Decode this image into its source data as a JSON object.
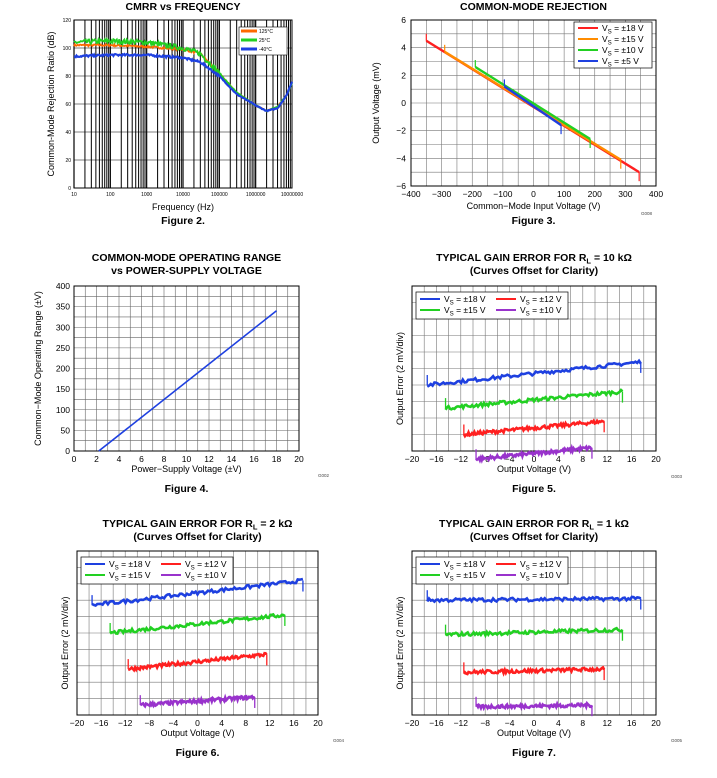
{
  "chart_data": [
    {
      "type": "line",
      "title": "CMRR vs FREQUENCY",
      "xlabel": "Frequency (Hz)",
      "ylabel": "Common-Mode Rejection Ratio (dB)",
      "figure_label": "Figure 2.",
      "x_scale": "log",
      "xlim": [
        10,
        10000000
      ],
      "ylim": [
        0,
        120
      ],
      "x_ticks": [
        "10",
        "100",
        "1000",
        "10000",
        "100000",
        "1000000",
        "10000000"
      ],
      "y_ticks": [
        "0",
        "20",
        "40",
        "60",
        "80",
        "100",
        "120"
      ],
      "grid": true,
      "legend_position": "top-right",
      "series": [
        {
          "name": "125°C",
          "color": "#ff6a00",
          "x": [
            10,
            100,
            1000,
            10000,
            30000,
            100000,
            300000,
            1000000,
            2000000,
            4000000,
            7000000,
            10000000
          ],
          "y": [
            102,
            102,
            101,
            99,
            96,
            82,
            68,
            59,
            55,
            58,
            66,
            75
          ]
        },
        {
          "name": "25°C",
          "color": "#22d022",
          "x": [
            10,
            100,
            1000,
            10000,
            30000,
            100000,
            300000,
            1000000,
            2000000,
            4000000,
            7000000,
            10000000
          ],
          "y": [
            104,
            105,
            104,
            100,
            96,
            82,
            68,
            59,
            55,
            58,
            66,
            75
          ]
        },
        {
          "name": "-40°C",
          "color": "#1e40e0",
          "x": [
            10,
            100,
            1000,
            10000,
            30000,
            100000,
            300000,
            1000000,
            2000000,
            4000000,
            7000000,
            10000000
          ],
          "y": [
            94,
            95,
            95,
            93,
            90,
            80,
            67,
            59,
            55,
            57,
            66,
            76
          ]
        }
      ]
    },
    {
      "type": "line",
      "title": "COMMON-MODE REJECTION",
      "xlabel": "Common−Mode Input Voltage (V)",
      "ylabel": "Output Voltage (mV)",
      "figure_label": "Figure 3.",
      "graph_id": "G008",
      "xlim": [
        -400,
        400
      ],
      "ylim": [
        -6,
        6
      ],
      "x_ticks": [
        "−400",
        "−300",
        "−200",
        "−100",
        "0",
        "100",
        "200",
        "300",
        "400"
      ],
      "y_ticks": [
        "−6",
        "−4",
        "−2",
        "0",
        "2",
        "4",
        "6"
      ],
      "grid": true,
      "legend_position": "top-right",
      "series": [
        {
          "name": "V_S = ±18 V",
          "name_parts": [
            "V",
            "S",
            " = ±18 V"
          ],
          "color": "#ff2020",
          "x": [
            -350,
            345
          ],
          "y": [
            4.5,
            -5.0
          ]
        },
        {
          "name": "V_S = ±15 V",
          "name_parts": [
            "V",
            "S",
            " = ±15 V"
          ],
          "color": "#ff8c00",
          "x": [
            -290,
            285
          ],
          "y": [
            3.7,
            -4.1
          ]
        },
        {
          "name": "V_S = ±10 V",
          "name_parts": [
            "V",
            "S",
            " = ±10 V"
          ],
          "color": "#22d022",
          "x": [
            -190,
            185
          ],
          "y": [
            2.6,
            -2.6
          ]
        },
        {
          "name": "V_S = ±5 V",
          "name_parts": [
            "V",
            "S",
            " = ±5 V"
          ],
          "color": "#1e40e0",
          "x": [
            -95,
            90
          ],
          "y": [
            1.2,
            -1.6
          ]
        }
      ]
    },
    {
      "type": "line",
      "title": "COMMON-MODE OPERATING RANGE",
      "subtitle": "vs POWER-SUPPLY VOLTAGE",
      "xlabel": "Power−Supply Voltage (±V)",
      "ylabel": "Common−Mode Operating Range (±V)",
      "figure_label": "Figure 4.",
      "graph_id": "G002",
      "xlim": [
        0,
        20
      ],
      "ylim": [
        0,
        400
      ],
      "x_ticks": [
        "0",
        "2",
        "4",
        "6",
        "8",
        "10",
        "12",
        "14",
        "16",
        "18",
        "20"
      ],
      "y_ticks": [
        "0",
        "50",
        "100",
        "150",
        "200",
        "250",
        "300",
        "350",
        "400"
      ],
      "grid": true,
      "series": [
        {
          "color": "#1e40e0",
          "x": [
            2.2,
            18
          ],
          "y": [
            0,
            340
          ]
        }
      ]
    },
    {
      "type": "line",
      "title_main": "TYPICAL GAIN ERROR FOR R",
      "title_sub": "L",
      "title_tail": " = 10 kΩ",
      "subtitle": "(Curves Offset for Clarity)",
      "xlabel": "Output Voltage (V)",
      "ylabel": "Output Error (2 mV/div)",
      "figure_label": "Figure 5.",
      "graph_id": "G003",
      "xlim": [
        -20,
        20
      ],
      "y_divisions": 10,
      "x_ticks": [
        "−20",
        "−16",
        "−12",
        "−8",
        "−4",
        "0",
        "4",
        "8",
        "12",
        "16",
        "20"
      ],
      "grid": true,
      "legend_position": "top",
      "series": [
        {
          "name": "V_S = ±18 V",
          "name_parts": [
            "V",
            "S",
            " = ±18 V"
          ],
          "color": "#1e40e0",
          "x": [
            -17.5,
            17.5
          ],
          "y": [
            4.0,
            5.4
          ]
        },
        {
          "name": "V_S = ±15 V",
          "name_parts": [
            "V",
            "S",
            " = ±15 V"
          ],
          "color": "#22d022",
          "x": [
            -14.5,
            14.5
          ],
          "y": [
            2.6,
            3.6
          ]
        },
        {
          "name": "V_S = ±12 V",
          "name_parts": [
            "V",
            "S",
            " = ±12 V"
          ],
          "color": "#ff2020",
          "x": [
            -11.5,
            11.5
          ],
          "y": [
            1.0,
            1.8
          ]
        },
        {
          "name": "V_S = ±10 V",
          "name_parts": [
            "V",
            "S",
            " = ±10 V"
          ],
          "color": "#9933cc",
          "x": [
            -9.5,
            9.5
          ],
          "y": [
            -0.5,
            0.2
          ]
        }
      ]
    },
    {
      "type": "line",
      "title_main": "TYPICAL GAIN ERROR FOR R",
      "title_sub": "L",
      "title_tail": " = 2 kΩ",
      "subtitle": "(Curves Offset for Clarity)",
      "xlabel": "Output Voltage (V)",
      "ylabel": "Output Error (2 mV/div)",
      "figure_label": "Figure 6.",
      "graph_id": "G004",
      "xlim": [
        -20,
        20
      ],
      "y_divisions": 10,
      "x_ticks": [
        "−20",
        "−16",
        "−12",
        "−8",
        "−4",
        "0",
        "4",
        "8",
        "12",
        "16",
        "20"
      ],
      "grid": true,
      "legend_position": "top",
      "series": [
        {
          "name": "V_S = ±18 V",
          "name_parts": [
            "V",
            "S",
            " = ±18 V"
          ],
          "color": "#1e40e0",
          "x": [
            -17.5,
            17.5
          ],
          "y": [
            6.7,
            8.2
          ]
        },
        {
          "name": "V_S = ±15 V",
          "name_parts": [
            "V",
            "S",
            " = ±15 V"
          ],
          "color": "#22d022",
          "x": [
            -14.5,
            14.5
          ],
          "y": [
            5.0,
            6.1
          ]
        },
        {
          "name": "V_S = ±12 V",
          "name_parts": [
            "V",
            "S",
            " = ±12 V"
          ],
          "color": "#ff2020",
          "x": [
            -11.5,
            11.5
          ],
          "y": [
            2.8,
            3.7
          ]
        },
        {
          "name": "V_S = ±10 V",
          "name_parts": [
            "V",
            "S",
            " = ±10 V"
          ],
          "color": "#9933cc",
          "x": [
            -9.5,
            9.5
          ],
          "y": [
            0.6,
            1.1
          ]
        }
      ]
    },
    {
      "type": "line",
      "title_main": "TYPICAL GAIN ERROR FOR R",
      "title_sub": "L",
      "title_tail": " = 1 kΩ",
      "subtitle": "(Curves Offset for Clarity)",
      "xlabel": "Output Voltage (V)",
      "ylabel": "Output Error (2 mV/div)",
      "figure_label": "Figure 7.",
      "graph_id": "G005",
      "xlim": [
        -20,
        20
      ],
      "y_divisions": 10,
      "x_ticks": [
        "−20",
        "−16",
        "−12",
        "−8",
        "−4",
        "0",
        "4",
        "8",
        "12",
        "16",
        "20"
      ],
      "grid": true,
      "legend_position": "top",
      "series": [
        {
          "name": "V_S = ±18 V",
          "name_parts": [
            "V",
            "S",
            " = ±18 V"
          ],
          "color": "#1e40e0",
          "x": [
            -17.5,
            17.5
          ],
          "y": [
            7.0,
            7.1
          ]
        },
        {
          "name": "V_S = ±15 V",
          "name_parts": [
            "V",
            "S",
            " = ±15 V"
          ],
          "color": "#22d022",
          "x": [
            -14.5,
            14.5
          ],
          "y": [
            4.9,
            5.2
          ]
        },
        {
          "name": "V_S = ±12 V",
          "name_parts": [
            "V",
            "S",
            " = ±12 V"
          ],
          "color": "#ff2020",
          "x": [
            -11.5,
            11.5
          ],
          "y": [
            2.6,
            2.8
          ]
        },
        {
          "name": "V_S = ±10 V",
          "name_parts": [
            "V",
            "S",
            " = ±10 V"
          ],
          "color": "#9933cc",
          "x": [
            -9.5,
            9.5
          ],
          "y": [
            0.5,
            0.6
          ]
        }
      ]
    }
  ]
}
